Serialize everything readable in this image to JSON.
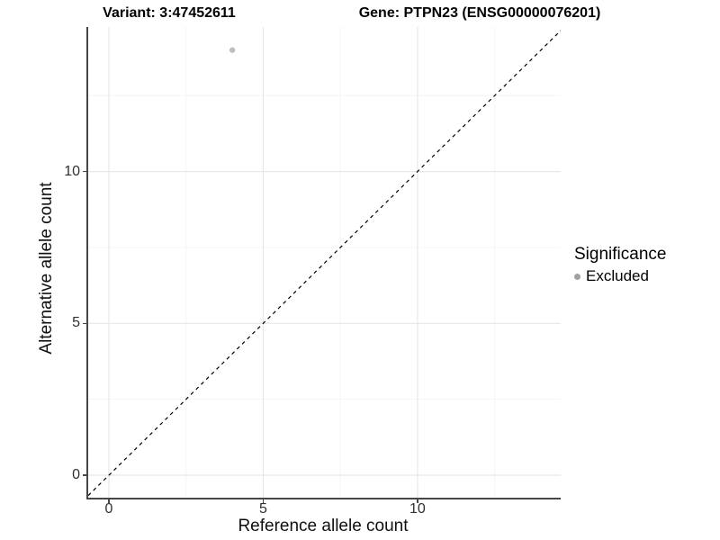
{
  "titles": {
    "variant": "Variant: 3:47452611",
    "gene": "Gene: PTPN23 (ENSG00000076201)"
  },
  "legend": {
    "title": "Significance",
    "items": [
      {
        "label": "Excluded",
        "color": "#a1a1a1"
      }
    ]
  },
  "colors": {
    "background": "#ffffff",
    "axis_line": "#474747",
    "tick_mark": "#474747",
    "tick_label": "#303030",
    "grid_major": "#e7e7e7",
    "grid_minor": "#f4f4f4",
    "point": "#bebebe",
    "reference_line": "#000000"
  },
  "chart_data": {
    "type": "scatter",
    "title": "Variant: 3:47452611   Gene: PTPN23 (ENSG00000076201)",
    "xlabel": "Reference allele count",
    "ylabel": "Alternative allele count",
    "xlim": [
      -0.67,
      14.64
    ],
    "ylim": [
      -0.74,
      14.76
    ],
    "x_ticks": [
      0,
      5,
      10
    ],
    "y_ticks": [
      0,
      5,
      10
    ],
    "x_tick_labels": [
      "0",
      "5",
      "10"
    ],
    "y_tick_labels": [
      "0",
      "5",
      "10"
    ],
    "x_minor_ticks": [
      2.5,
      7.5,
      12.5
    ],
    "y_minor_ticks": [
      2.5,
      7.5,
      12.5
    ],
    "grid": "major+minor",
    "legend_position": "right",
    "series": [
      {
        "name": "Excluded",
        "color": "#bebebe",
        "points": [
          [
            4,
            14
          ]
        ]
      }
    ],
    "reference_line": {
      "slope": 1,
      "intercept": 0,
      "linetype": "dashed",
      "color": "#000000"
    }
  }
}
